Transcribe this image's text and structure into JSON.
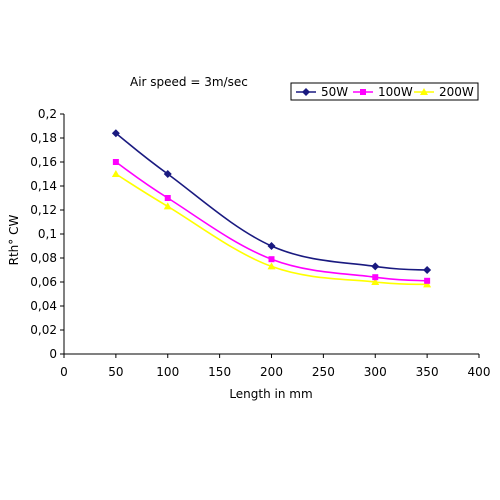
{
  "chart_data": {
    "type": "line",
    "title": "",
    "annotation": "Air speed = 3m/sec",
    "xlabel": "Length in mm",
    "ylabel": "Rth° CW",
    "xlim": [
      0,
      400
    ],
    "ylim": [
      0,
      0.2
    ],
    "x_ticks": [
      "0",
      "50",
      "100",
      "150",
      "200",
      "250",
      "300",
      "350",
      "400"
    ],
    "y_ticks": [
      "0",
      "0,02",
      "0,04",
      "0,06",
      "0,08",
      "0,1",
      "0,12",
      "0,14",
      "0,16",
      "0,18",
      "0,2"
    ],
    "grid": false,
    "legend_position": "top-right",
    "series": [
      {
        "name": "50W",
        "color": "#1a1a80",
        "marker": "diamond",
        "x": [
          50,
          100,
          200,
          300,
          350
        ],
        "y": [
          0.184,
          0.15,
          0.09,
          0.073,
          0.07
        ]
      },
      {
        "name": "100W",
        "color": "#ff00ff",
        "marker": "square",
        "x": [
          50,
          100,
          200,
          300,
          350
        ],
        "y": [
          0.16,
          0.13,
          0.079,
          0.064,
          0.061
        ]
      },
      {
        "name": "200W",
        "color": "#ffff00",
        "marker": "triangle",
        "x": [
          50,
          100,
          200,
          300,
          350
        ],
        "y": [
          0.15,
          0.123,
          0.073,
          0.06,
          0.058
        ]
      }
    ]
  }
}
